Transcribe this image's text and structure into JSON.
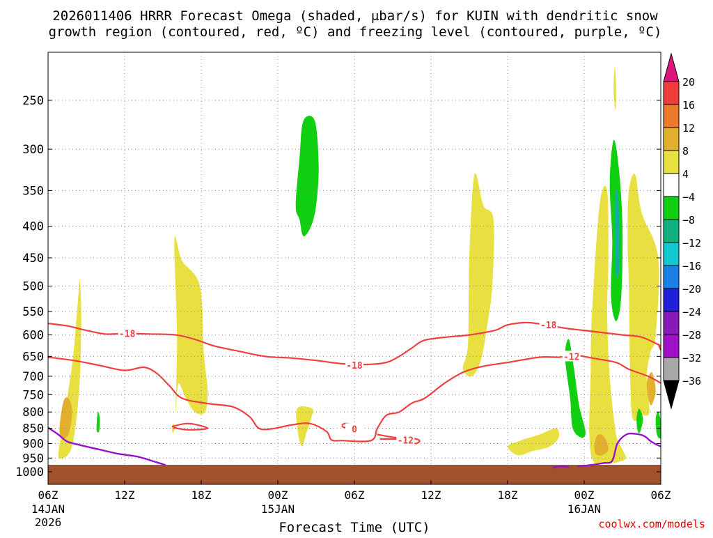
{
  "chart_data": {
    "type": "heatmap",
    "title_line1": "2026011406 HRRR Forecast Omega (shaded, μbar/s) for KUIN with dendritic snow",
    "title_line2": "growth region (contoured, red, ºC) and freezing level (contoured, purple, ºC)",
    "xlabel": "Forecast Time (UTC)",
    "ylabel": "",
    "credit": "coolwx.com/models",
    "x_range_hours": [
      0,
      48
    ],
    "y_ticks": [
      250,
      300,
      350,
      400,
      450,
      500,
      550,
      600,
      650,
      700,
      750,
      800,
      850,
      900,
      950,
      1000
    ],
    "y_tick_labels": [
      "250",
      "300",
      "350",
      "400",
      "450",
      "500",
      "550",
      "600",
      "650",
      "700",
      "750",
      "800",
      "850",
      "900",
      "950",
      "1000"
    ],
    "x_ticks": [
      {
        "hour": 0,
        "label": "06Z",
        "date": "14JAN",
        "year": "2026"
      },
      {
        "hour": 6,
        "label": "12Z",
        "date": "",
        "year": ""
      },
      {
        "hour": 12,
        "label": "18Z",
        "date": "",
        "year": ""
      },
      {
        "hour": 18,
        "label": "00Z",
        "date": "15JAN",
        "year": ""
      },
      {
        "hour": 24,
        "label": "06Z",
        "date": "",
        "year": ""
      },
      {
        "hour": 30,
        "label": "12Z",
        "date": "",
        "year": ""
      },
      {
        "hour": 36,
        "label": "18Z",
        "date": "",
        "year": ""
      },
      {
        "hour": 42,
        "label": "00Z",
        "date": "16JAN",
        "year": ""
      },
      {
        "hour": 48,
        "label": "06Z",
        "date": "",
        "year": ""
      }
    ],
    "colorbar": {
      "labels": [
        "20",
        "16",
        "12",
        "8",
        "4",
        "−4",
        "−8",
        "−12",
        "−16",
        "−20",
        "−24",
        "−28",
        "−32",
        "−36"
      ],
      "colors": [
        "#e0157a",
        "#f03b3b",
        "#ee7a2c",
        "#e2b02c",
        "#e8e040",
        "#ffffff",
        "#10cf10",
        "#10b080",
        "#10c8d0",
        "#1a80e6",
        "#2020d8",
        "#8a1ab8",
        "#a010c8",
        "#a8a8a8",
        "#000000"
      ]
    },
    "contour_labels": [
      {
        "text": "-18",
        "hour": 6.2,
        "p": 597,
        "color": "#f04040"
      },
      {
        "text": "-18",
        "hour": 24.0,
        "p": 672,
        "color": "#f04040"
      },
      {
        "text": "-18",
        "hour": 39.2,
        "p": 578,
        "color": "#f04040"
      },
      {
        "text": "-12",
        "hour": 41.0,
        "p": 650,
        "color": "#f04040"
      },
      {
        "text": "-12",
        "hour": 28.0,
        "p": 888,
        "color": "#f04040"
      },
      {
        "text": "0",
        "hour": 24.0,
        "p": 852,
        "color": "#f04040"
      }
    ],
    "omega_regions": [
      {
        "value": 6,
        "color": "#e8e040",
        "points": [
          [
            0.8,
            940
          ],
          [
            1.1,
            860
          ],
          [
            1.5,
            760
          ],
          [
            2.0,
            640
          ],
          [
            2.4,
            510
          ],
          [
            2.5,
            490
          ],
          [
            2.6,
            560
          ],
          [
            2.5,
            700
          ],
          [
            2.2,
            830
          ],
          [
            1.8,
            920
          ],
          [
            1.2,
            950
          ]
        ]
      },
      {
        "value": 10,
        "color": "#e2b02c",
        "points": [
          [
            0.9,
            850
          ],
          [
            1.2,
            770
          ],
          [
            1.6,
            760
          ],
          [
            1.9,
            800
          ],
          [
            1.6,
            870
          ],
          [
            1.1,
            880
          ]
        ]
      },
      {
        "value": -6,
        "color": "#10cf10",
        "points": [
          [
            3.8,
            855
          ],
          [
            3.9,
            800
          ],
          [
            4.05,
            820
          ],
          [
            4.0,
            860
          ]
        ]
      },
      {
        "value": 6,
        "color": "#e8e040",
        "points": [
          [
            10.0,
            800
          ],
          [
            10.1,
            600
          ],
          [
            9.9,
            420
          ],
          [
            10.5,
            455
          ],
          [
            11.9,
            500
          ],
          [
            12.2,
            640
          ],
          [
            12.5,
            740
          ],
          [
            12.3,
            800
          ],
          [
            11.5,
            800
          ],
          [
            10.8,
            760
          ],
          [
            10.2,
            720
          ]
        ]
      },
      {
        "value": 6,
        "color": "#e8e040",
        "points": [
          [
            9.7,
            850
          ],
          [
            9.8,
            835
          ],
          [
            9.95,
            845
          ],
          [
            9.8,
            865
          ]
        ]
      },
      {
        "value": 6,
        "color": "#e8e040",
        "points": [
          [
            19.5,
            790
          ],
          [
            20.7,
            790
          ],
          [
            20.6,
            820
          ],
          [
            20.2,
            870
          ],
          [
            19.9,
            910
          ],
          [
            19.6,
            870
          ]
        ]
      },
      {
        "value": -6,
        "color": "#10cf10",
        "points": [
          [
            19.4,
            370
          ],
          [
            19.7,
            310
          ],
          [
            20.0,
            270
          ],
          [
            20.9,
            270
          ],
          [
            21.2,
            320
          ],
          [
            21.0,
            370
          ],
          [
            20.6,
            400
          ],
          [
            20.0,
            415
          ],
          [
            19.7,
            390
          ]
        ]
      },
      {
        "value": 6,
        "color": "#e8e040",
        "points": [
          [
            32.5,
            680
          ],
          [
            32.9,
            620
          ],
          [
            33.0,
            450
          ],
          [
            33.4,
            330
          ],
          [
            34.1,
            370
          ],
          [
            34.9,
            390
          ],
          [
            34.8,
            500
          ],
          [
            34.4,
            580
          ],
          [
            33.9,
            660
          ],
          [
            33.2,
            700
          ]
        ]
      },
      {
        "value": 6,
        "color": "#e8e040",
        "points": [
          [
            36.0,
            910
          ],
          [
            37.0,
            890
          ],
          [
            38.5,
            870
          ],
          [
            39.8,
            850
          ],
          [
            40.0,
            880
          ],
          [
            39.3,
            910
          ],
          [
            38.0,
            925
          ],
          [
            36.8,
            940
          ]
        ]
      },
      {
        "value": 6,
        "color": "#e8e040",
        "points": [
          [
            42.4,
            860
          ],
          [
            42.5,
            700
          ],
          [
            42.6,
            560
          ],
          [
            43.2,
            370
          ],
          [
            43.8,
            350
          ],
          [
            43.9,
            450
          ],
          [
            43.8,
            550
          ],
          [
            44.0,
            700
          ],
          [
            44.5,
            870
          ],
          [
            45.0,
            920
          ],
          [
            45.2,
            955
          ],
          [
            43.8,
            970
          ],
          [
            42.7,
            960
          ]
        ]
      },
      {
        "value": 10,
        "color": "#e2b02c",
        "points": [
          [
            42.8,
            900
          ],
          [
            43.1,
            870
          ],
          [
            43.6,
            880
          ],
          [
            43.9,
            920
          ],
          [
            43.4,
            940
          ],
          [
            42.9,
            935
          ]
        ]
      },
      {
        "value": -6,
        "color": "#10cf10",
        "points": [
          [
            44.0,
            340
          ],
          [
            44.3,
            290
          ],
          [
            44.7,
            320
          ],
          [
            45.0,
            400
          ],
          [
            44.9,
            520
          ],
          [
            44.5,
            570
          ],
          [
            44.1,
            520
          ],
          [
            44.2,
            420
          ]
        ]
      },
      {
        "value": -13,
        "color": "#10b0a0",
        "points": [
          [
            44.4,
            370
          ],
          [
            44.6,
            350
          ],
          [
            44.8,
            420
          ],
          [
            44.7,
            480
          ],
          [
            44.45,
            470
          ]
        ]
      },
      {
        "value": -6,
        "color": "#10cf10",
        "points": [
          [
            40.5,
            650
          ],
          [
            40.8,
            610
          ],
          [
            41.2,
            680
          ],
          [
            41.6,
            780
          ],
          [
            42.1,
            860
          ],
          [
            41.8,
            880
          ],
          [
            41.1,
            850
          ],
          [
            40.9,
            760
          ]
        ]
      },
      {
        "value": 6,
        "color": "#e8e040",
        "points": [
          [
            45.4,
            420
          ],
          [
            45.5,
            350
          ],
          [
            46.0,
            330
          ],
          [
            46.5,
            380
          ],
          [
            47.8,
            450
          ],
          [
            47.6,
            600
          ],
          [
            47.2,
            640
          ],
          [
            46.9,
            700
          ],
          [
            47.1,
            800
          ],
          [
            46.5,
            810
          ],
          [
            45.8,
            820
          ],
          [
            45.6,
            700
          ],
          [
            45.5,
            500
          ]
        ]
      },
      {
        "value": 10,
        "color": "#e2b02c",
        "points": [
          [
            46.9,
            720
          ],
          [
            47.3,
            690
          ],
          [
            47.6,
            740
          ],
          [
            47.2,
            780
          ]
        ]
      },
      {
        "value": -6,
        "color": "#10cf10",
        "points": [
          [
            46.1,
            820
          ],
          [
            46.3,
            790
          ],
          [
            46.6,
            820
          ],
          [
            46.4,
            860
          ],
          [
            46.2,
            860
          ]
        ]
      },
      {
        "value": -6,
        "color": "#10cf10",
        "points": [
          [
            47.6,
            820
          ],
          [
            47.8,
            800
          ],
          [
            48.0,
            830
          ],
          [
            48.0,
            880
          ],
          [
            47.7,
            870
          ]
        ]
      },
      {
        "value": 6,
        "color": "#e8e040",
        "points": [
          [
            44.3,
            240
          ],
          [
            44.4,
            220
          ],
          [
            44.5,
            240
          ],
          [
            44.45,
            260
          ]
        ]
      }
    ],
    "dgz_contours_red": [
      [
        [
          0,
          575
        ],
        [
          1.5,
          580
        ],
        [
          3,
          590
        ],
        [
          4.5,
          598
        ],
        [
          6,
          597
        ],
        [
          8,
          598
        ],
        [
          10,
          600
        ],
        [
          11.5,
          610
        ],
        [
          13,
          625
        ],
        [
          15,
          638
        ],
        [
          17,
          650
        ],
        [
          19,
          654
        ],
        [
          21,
          660
        ],
        [
          23,
          668
        ],
        [
          25,
          670
        ],
        [
          26.5,
          665
        ],
        [
          27.5,
          650
        ],
        [
          28.5,
          630
        ],
        [
          29.5,
          612
        ],
        [
          31.5,
          604
        ],
        [
          33,
          600
        ],
        [
          35,
          590
        ],
        [
          36,
          578
        ],
        [
          37.5,
          573
        ],
        [
          39,
          578
        ],
        [
          40.5,
          585
        ],
        [
          42,
          590
        ],
        [
          43.5,
          595
        ],
        [
          45,
          600
        ],
        [
          46.5,
          605
        ],
        [
          48,
          625
        ]
      ],
      [
        [
          0,
          652
        ],
        [
          2,
          660
        ],
        [
          4,
          672
        ],
        [
          6,
          685
        ],
        [
          7.5,
          677
        ],
        [
          8.5,
          692
        ],
        [
          9.5,
          725
        ],
        [
          10.5,
          760
        ],
        [
          12.5,
          775
        ],
        [
          14.5,
          785
        ],
        [
          15.8,
          815
        ],
        [
          16.5,
          850
        ],
        [
          17.5,
          852
        ],
        [
          19,
          840
        ],
        [
          20.5,
          835
        ],
        [
          21.8,
          860
        ],
        [
          22.2,
          888
        ],
        [
          23,
          890
        ],
        [
          25.3,
          890
        ],
        [
          25.8,
          850
        ],
        [
          26.5,
          810
        ],
        [
          27.5,
          800
        ],
        [
          28.5,
          774
        ],
        [
          29.5,
          760
        ],
        [
          31,
          720
        ],
        [
          32.5,
          690
        ],
        [
          34,
          675
        ],
        [
          36,
          665
        ],
        [
          38.5,
          652
        ],
        [
          40,
          652
        ],
        [
          41.2,
          647
        ],
        [
          42.8,
          655
        ],
        [
          44.5,
          665
        ],
        [
          45.5,
          682
        ],
        [
          47,
          700
        ],
        [
          48,
          718
        ]
      ],
      [
        [
          9.7,
          845
        ],
        [
          11,
          835
        ],
        [
          12.5,
          850
        ],
        [
          11,
          855
        ],
        [
          9.8,
          848
        ]
      ],
      [
        [
          23.0,
          840
        ],
        [
          23.3,
          835
        ],
        [
          23.8,
          840
        ],
        [
          23.3,
          848
        ],
        [
          23.0,
          843
        ]
      ],
      [
        [
          25.8,
          870
        ],
        [
          27.2,
          880
        ],
        [
          28.5,
          882
        ],
        [
          29.1,
          890
        ],
        [
          28.8,
          900
        ],
        [
          28.3,
          890
        ],
        [
          27.2,
          885
        ],
        [
          26.0,
          885
        ]
      ],
      [
        [
          47.8,
          620
        ],
        [
          48,
          635
        ]
      ]
    ],
    "freezing_contours_purple": [
      [
        [
          0,
          848
        ],
        [
          0.8,
          870
        ],
        [
          1.5,
          893
        ],
        [
          2.5,
          905
        ],
        [
          4,
          920
        ],
        [
          5.5,
          935
        ],
        [
          7,
          945
        ],
        [
          8.5,
          965
        ],
        [
          9.2,
          975
        ]
      ],
      [
        [
          39.5,
          985
        ],
        [
          40.2,
          980
        ],
        [
          40.8,
          983
        ]
      ],
      [
        [
          41.5,
          980
        ],
        [
          42.5,
          975
        ],
        [
          43.5,
          968
        ],
        [
          44.2,
          960
        ],
        [
          44.6,
          900
        ],
        [
          45.3,
          870
        ],
        [
          46.0,
          868
        ],
        [
          46.7,
          875
        ],
        [
          47.3,
          895
        ],
        [
          48,
          910
        ]
      ]
    ]
  }
}
